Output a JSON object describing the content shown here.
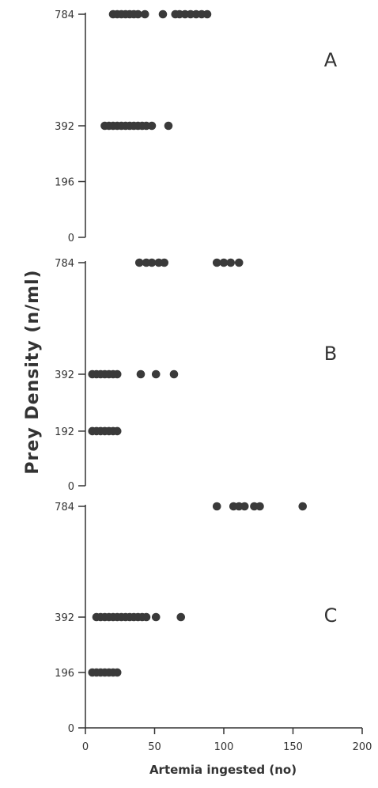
{
  "chart_data": {
    "type": "scatter",
    "ylabel": "Prey Density (n/ml)",
    "xlabel": "Artemia ingested (no)",
    "xlim": [
      0,
      200
    ],
    "x_ticks": [
      "0",
      "50",
      "100",
      "150",
      "200"
    ],
    "point_color": "#3a3a3a",
    "panels": [
      {
        "label": "A",
        "ylim": [
          0,
          800
        ],
        "y_ticks": [
          {
            "value": 0,
            "label": "0"
          },
          {
            "value": 196,
            "label": "196"
          },
          {
            "value": 392,
            "label": "392"
          },
          {
            "value": 784,
            "label": "784"
          }
        ],
        "points": [
          {
            "y": 784,
            "x": [
              20,
              23,
              26,
              29,
              32,
              35,
              38,
              43,
              56,
              65,
              68,
              72,
              76,
              80,
              84,
              88
            ]
          },
          {
            "y": 392,
            "x": [
              14,
              17,
              20,
              23,
              26,
              29,
              32,
              35,
              38,
              41,
              44,
              48,
              60
            ]
          }
        ]
      },
      {
        "label": "B",
        "ylim": [
          0,
          800
        ],
        "y_ticks": [
          {
            "value": 0,
            "label": "0"
          },
          {
            "value": 192,
            "label": "192"
          },
          {
            "value": 392,
            "label": "392"
          },
          {
            "value": 784,
            "label": "784"
          }
        ],
        "points": [
          {
            "y": 784,
            "x": [
              39,
              44,
              48,
              53,
              57,
              95,
              100,
              105,
              111
            ]
          },
          {
            "y": 392,
            "x": [
              5,
              8,
              11,
              14,
              17,
              20,
              23,
              40,
              51,
              64
            ]
          },
          {
            "y": 192,
            "x": [
              5,
              8,
              11,
              14,
              17,
              20,
              23
            ]
          }
        ]
      },
      {
        "label": "C",
        "ylim": [
          0,
          800
        ],
        "y_ticks": [
          {
            "value": 0,
            "label": "0"
          },
          {
            "value": 196,
            "label": "196"
          },
          {
            "value": 392,
            "label": "392"
          },
          {
            "value": 784,
            "label": "784"
          }
        ],
        "points": [
          {
            "y": 784,
            "x": [
              95,
              107,
              111,
              115,
              122,
              126,
              157
            ]
          },
          {
            "y": 392,
            "x": [
              8,
              11,
              14,
              17,
              20,
              23,
              26,
              29,
              32,
              35,
              38,
              41,
              44,
              51,
              69
            ]
          },
          {
            "y": 196,
            "x": [
              5,
              8,
              11,
              14,
              17,
              20,
              23
            ]
          }
        ]
      }
    ]
  }
}
